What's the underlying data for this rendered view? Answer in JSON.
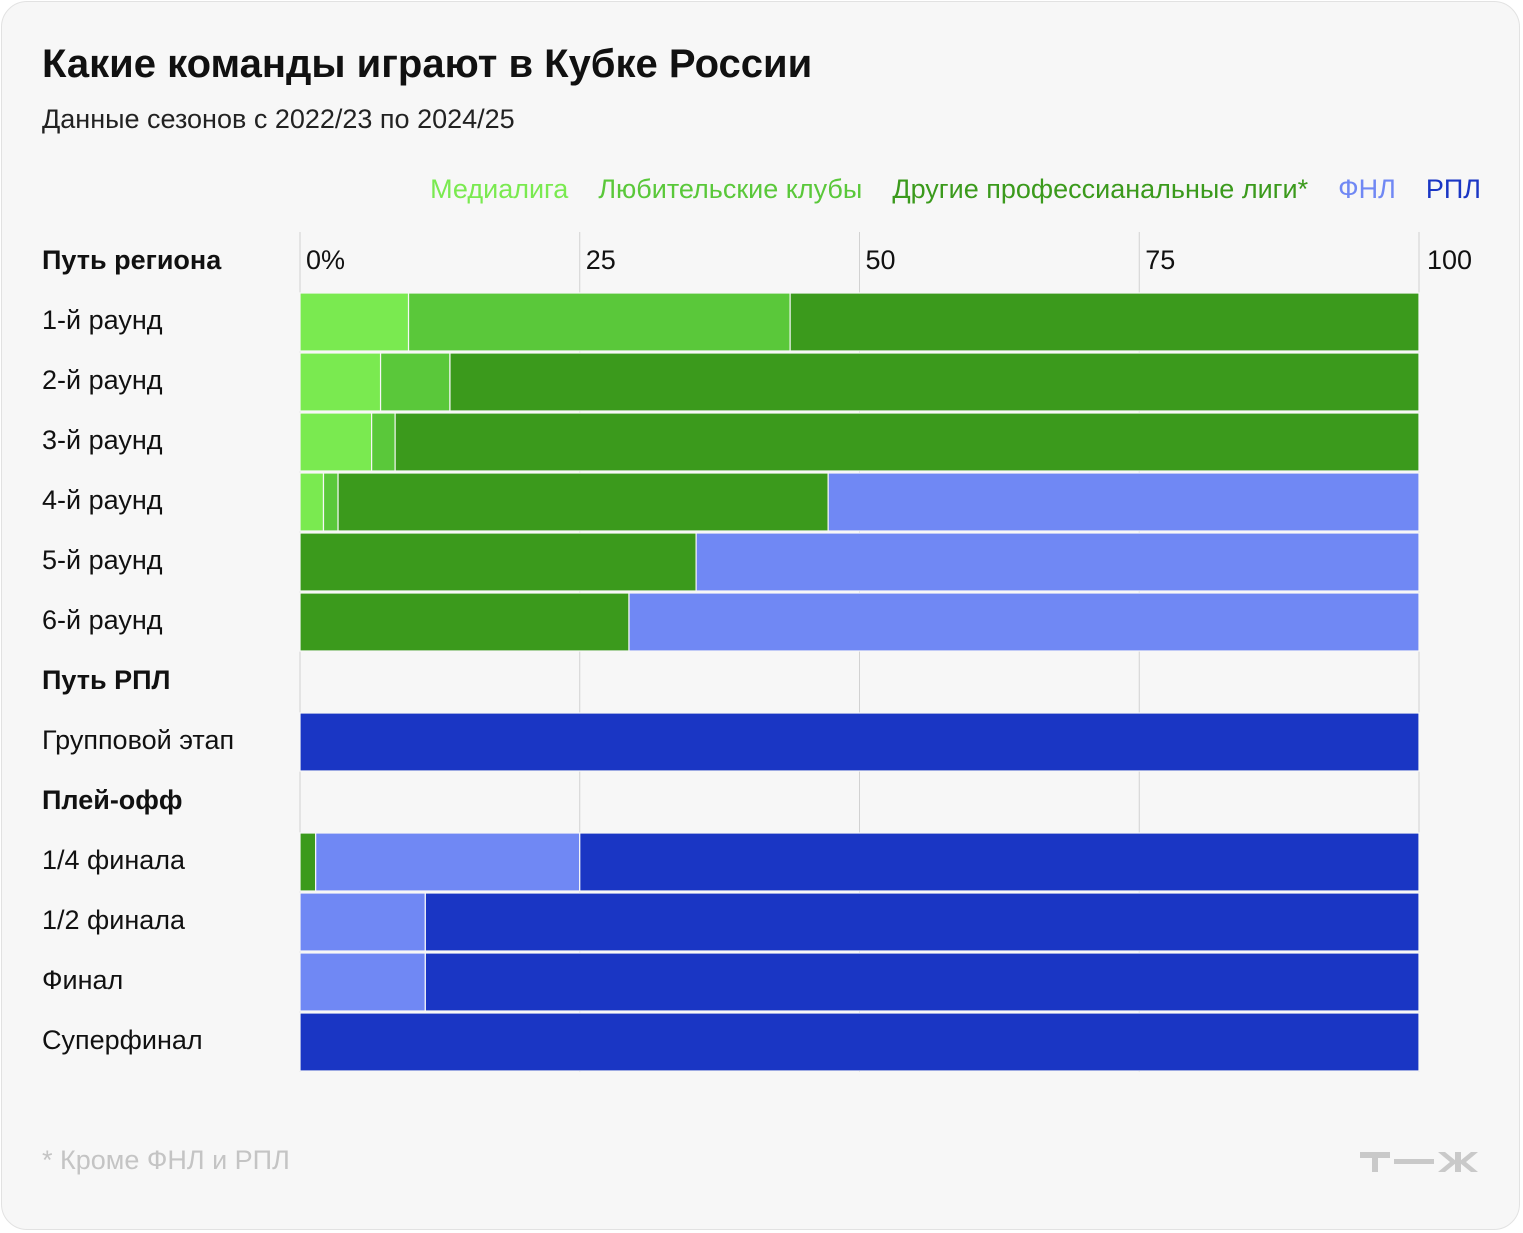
{
  "chart_data": {
    "type": "bar",
    "stacked": true,
    "orientation": "horizontal",
    "title": "Какие команды играют в Кубке России",
    "subtitle": "Данные сезонов с 2022/23 по 2024/25",
    "footnote": "* Кроме ФНЛ и РПЛ",
    "logo": "Т—Ж",
    "xlim": [
      0,
      100
    ],
    "ticks": [
      {
        "value": 0,
        "label": "0%"
      },
      {
        "value": 25,
        "label": "25"
      },
      {
        "value": 50,
        "label": "50"
      },
      {
        "value": 75,
        "label": "75"
      },
      {
        "value": 100,
        "label": "100"
      }
    ],
    "grid": true,
    "legend_position": "top-right",
    "series": [
      {
        "name": "Медиалига",
        "color": "#7aea50"
      },
      {
        "name": "Любительские клубы",
        "color": "#5ac83a"
      },
      {
        "name": "Другие профессианальные лиги*",
        "color": "#3b9a1c"
      },
      {
        "name": "ФНЛ",
        "color": "#7088f4"
      },
      {
        "name": "РПЛ",
        "color": "#1a36c4"
      }
    ],
    "groups": [
      {
        "label": "Путь региона",
        "rows": [
          {
            "label": "1-й раунд",
            "values": [
              9.7,
              34.1,
              56.2,
              0,
              0
            ]
          },
          {
            "label": "2-й раунд",
            "values": [
              7.2,
              6.2,
              86.6,
              0,
              0
            ]
          },
          {
            "label": "3-й раунд",
            "values": [
              6.4,
              2.1,
              91.5,
              0,
              0
            ]
          },
          {
            "label": "4-й раунд",
            "values": [
              2.1,
              1.3,
              43.8,
              52.8,
              0
            ]
          },
          {
            "label": "5-й раунд",
            "values": [
              0,
              0,
              35.4,
              64.6,
              0
            ]
          },
          {
            "label": "6-й раунд",
            "values": [
              0,
              0,
              29.4,
              70.6,
              0
            ]
          }
        ]
      },
      {
        "label": "Путь РПЛ",
        "rows": [
          {
            "label": "Групповой этап",
            "values": [
              0,
              0,
              0,
              0,
              100
            ]
          }
        ]
      },
      {
        "label": "Плей-офф",
        "rows": [
          {
            "label": "1/4 финала",
            "values": [
              0,
              0,
              1.4,
              23.6,
              75
            ]
          },
          {
            "label": "1/2 финала",
            "values": [
              0,
              0,
              0,
              11.2,
              88.8
            ]
          },
          {
            "label": "Финал",
            "values": [
              0,
              0,
              0,
              11.2,
              88.8
            ]
          },
          {
            "label": "Суперфинал",
            "values": [
              0,
              0,
              0,
              0,
              100
            ]
          }
        ]
      }
    ]
  }
}
